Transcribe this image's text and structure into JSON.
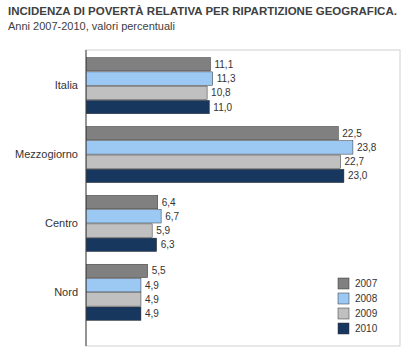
{
  "chart_data": {
    "type": "bar",
    "title": "INCIDENZA DI POVERTÀ RELATIVA PER RIPARTIZIONE GEOGRAFICA.",
    "subtitle": "Anni 2007-2010, valori percentuali",
    "orientation": "horizontal",
    "categories": [
      "Italia",
      "Mezzogiorno",
      "Centro",
      "Nord"
    ],
    "series": [
      {
        "name": "2007",
        "color": "#808080",
        "values": [
          11.1,
          22.5,
          6.4,
          5.5
        ],
        "value_labels": [
          "11,1",
          "22,5",
          "6,4",
          "5,5"
        ]
      },
      {
        "name": "2008",
        "color": "#9cc8f4",
        "values": [
          11.3,
          23.8,
          6.7,
          4.9
        ],
        "value_labels": [
          "11,3",
          "23,8",
          "6,7",
          "4,9"
        ]
      },
      {
        "name": "2009",
        "color": "#c0c0c0",
        "values": [
          10.8,
          22.7,
          5.9,
          4.9
        ],
        "value_labels": [
          "10,8",
          "22,7",
          "5,9",
          "4,9"
        ]
      },
      {
        "name": "2010",
        "color": "#17375e",
        "values": [
          11.0,
          23.0,
          6.3,
          4.9
        ],
        "value_labels": [
          "11,0",
          "23,0",
          "6,3",
          "4,9"
        ]
      }
    ],
    "xlim": [
      0,
      28
    ],
    "tick_labels": "y",
    "data_labels": true,
    "legend": "lower right"
  }
}
